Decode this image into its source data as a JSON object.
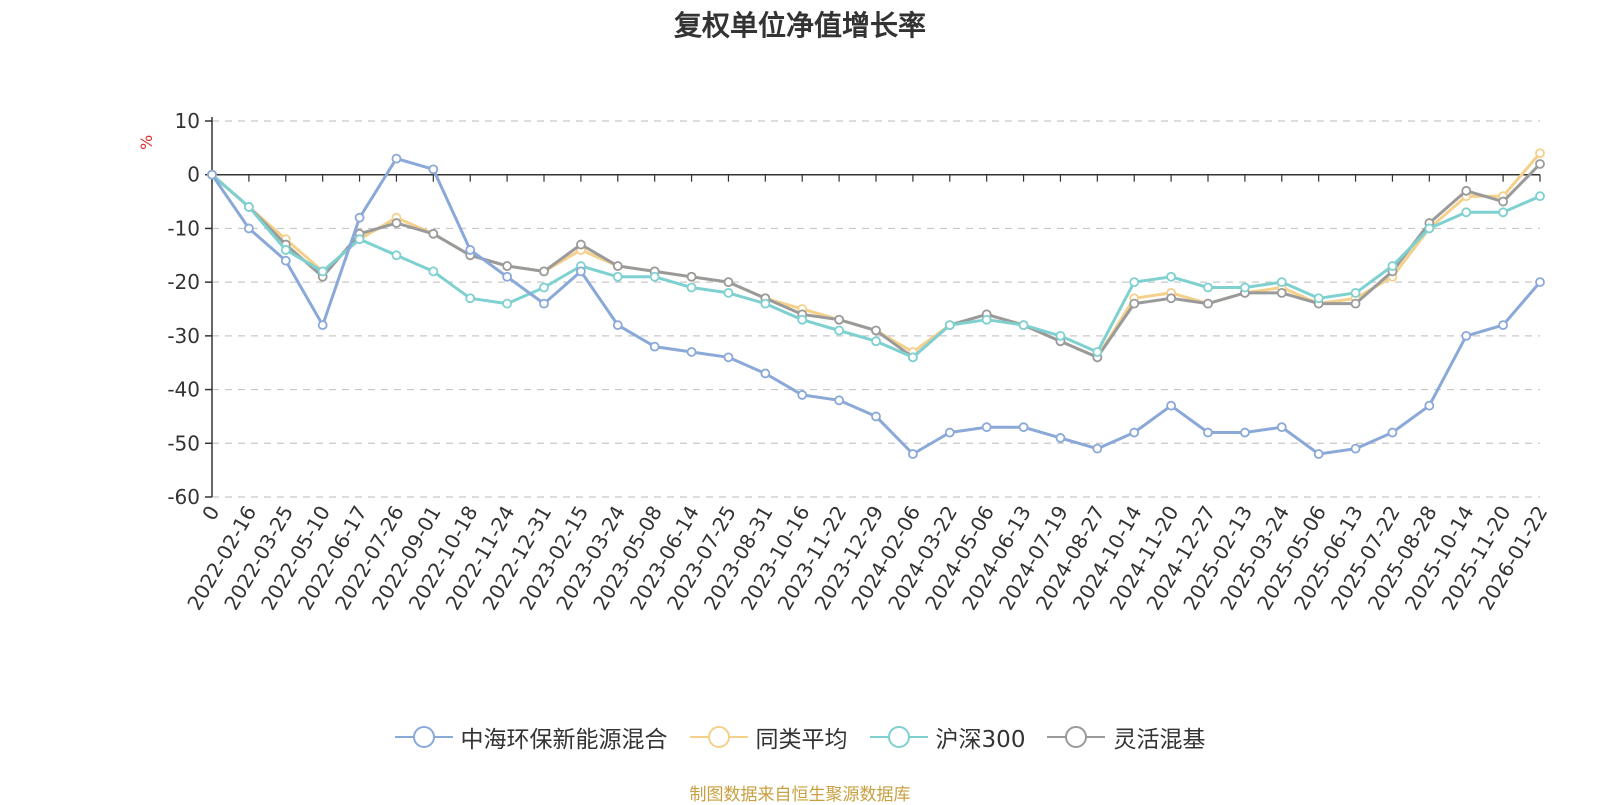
{
  "page": {
    "title": "复权单位净值增长率",
    "y_unit": "%",
    "source": "制图数据来自恒生聚源数据库"
  },
  "chart_data": {
    "type": "line",
    "title": "复权单位净值增长率",
    "ylabel": "%",
    "ylim": [
      -60,
      10
    ],
    "yticks": [
      10,
      0,
      -10,
      -20,
      -30,
      -40,
      -50,
      -60
    ],
    "grid": true,
    "legend": "bottom",
    "x": [
      "0",
      "2022-02-16",
      "2022-03-25",
      "2022-05-10",
      "2022-06-17",
      "2022-07-26",
      "2022-09-01",
      "2022-10-18",
      "2022-11-24",
      "2022-12-31",
      "2023-02-15",
      "2023-03-24",
      "2023-05-08",
      "2023-06-14",
      "2023-07-25",
      "2023-08-31",
      "2023-10-16",
      "2023-11-22",
      "2023-12-29",
      "2024-02-06",
      "2024-03-22",
      "2024-05-06",
      "2024-06-13",
      "2024-07-19",
      "2024-08-27",
      "2024-10-14",
      "2024-11-20",
      "2024-12-27",
      "2025-02-13",
      "2025-03-24",
      "2025-05-06",
      "2025-06-13",
      "2025-07-22",
      "2025-08-28",
      "2025-10-14",
      "2025-11-20",
      "2026-01-22"
    ],
    "series": [
      {
        "name": "中海环保新能源混合",
        "color": "#8aa8d8",
        "values": [
          0,
          -10,
          -16,
          -28,
          -8,
          3,
          1,
          -14,
          -19,
          -24,
          -18,
          -28,
          -32,
          -33,
          -34,
          -37,
          -41,
          -42,
          -45,
          -52,
          -48,
          -47,
          -47,
          -49,
          -51,
          -48,
          -43,
          -48,
          -48,
          -47,
          -52,
          -51,
          -48,
          -43,
          -30,
          -28,
          -20
        ]
      },
      {
        "name": "同类平均",
        "color": "#f5d08a",
        "values": [
          0,
          -6,
          -12,
          -18,
          -12,
          -8,
          -11,
          -15,
          -17,
          -18,
          -14,
          -17,
          -18,
          -19,
          -20,
          -23,
          -25,
          -27,
          -29,
          -33,
          -28,
          -26,
          -28,
          -31,
          -34,
          -23,
          -22,
          -24,
          -22,
          -21,
          -24,
          -23,
          -19,
          -10,
          -4,
          -4,
          4
        ]
      },
      {
        "name": "沪深300",
        "color": "#7fd0d0",
        "values": [
          0,
          -6,
          -14,
          -18,
          -12,
          -15,
          -18,
          -23,
          -24,
          -21,
          -17,
          -19,
          -19,
          -21,
          -22,
          -24,
          -27,
          -29,
          -31,
          -34,
          -28,
          -27,
          -28,
          -30,
          -33,
          -20,
          -19,
          -21,
          -21,
          -20,
          -23,
          -22,
          -17,
          -10,
          -7,
          -7,
          -4
        ]
      },
      {
        "name": "灵活混基",
        "color": "#9a9a9a",
        "values": [
          0,
          -6,
          -13,
          -19,
          -11,
          -9,
          -11,
          -15,
          -17,
          -18,
          -13,
          -17,
          -18,
          -19,
          -20,
          -23,
          -26,
          -27,
          -29,
          -34,
          -28,
          -26,
          -28,
          -31,
          -34,
          -24,
          -23,
          -24,
          -22,
          -22,
          -24,
          -24,
          -18,
          -9,
          -3,
          -5,
          2
        ]
      }
    ]
  }
}
